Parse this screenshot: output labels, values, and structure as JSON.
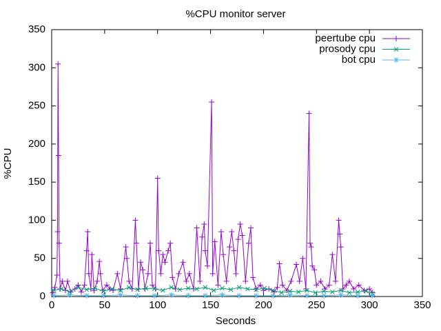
{
  "chart_data": {
    "type": "line",
    "title": "%CPU monitor server",
    "x_label": "Seconds",
    "y_label": "%CPU",
    "xlim": [
      0,
      350
    ],
    "ylim": [
      0,
      350
    ],
    "xticks": [
      0,
      50,
      100,
      150,
      200,
      250,
      300,
      350
    ],
    "yticks": [
      0,
      50,
      100,
      150,
      200,
      250,
      300,
      350
    ],
    "legend": "top right",
    "series": [
      {
        "name": "peertube cpu",
        "color": "#9400d3",
        "marker": "plus",
        "x": [
          1,
          3,
          5,
          5.5,
          6,
          6.5,
          7,
          8,
          10,
          13,
          15,
          18,
          22,
          25,
          28,
          31,
          33,
          34,
          35,
          37,
          38,
          40,
          43,
          45,
          46,
          48,
          52,
          55,
          58,
          62,
          65,
          70,
          71,
          73,
          76,
          79,
          80,
          82,
          84,
          86,
          88,
          91,
          93,
          95,
          98,
          100,
          101,
          103,
          105,
          107,
          110,
          112,
          114,
          117,
          120,
          124,
          127,
          130,
          134,
          137,
          140,
          142,
          144,
          145,
          147,
          151,
          152,
          154,
          157,
          160,
          162,
          165,
          168,
          170,
          172,
          174,
          176,
          178,
          180,
          183,
          186,
          188,
          190,
          193,
          197,
          200,
          205,
          210,
          213,
          215,
          218,
          222,
          226,
          231,
          234,
          237,
          240,
          243,
          244,
          245,
          246,
          248,
          250,
          254,
          258,
          262,
          265,
          268,
          271,
          272,
          273,
          275,
          278,
          281,
          285,
          290,
          295,
          300,
          303
        ],
        "values": [
          5,
          12,
          28,
          85,
          305,
          185,
          70,
          10,
          20,
          8,
          20,
          6,
          10,
          15,
          6,
          15,
          60,
          85,
          30,
          10,
          55,
          8,
          20,
          46,
          30,
          8,
          15,
          10,
          8,
          30,
          10,
          65,
          50,
          20,
          10,
          100,
          70,
          10,
          45,
          35,
          10,
          30,
          70,
          15,
          10,
          155,
          60,
          30,
          55,
          45,
          60,
          70,
          25,
          10,
          30,
          45,
          20,
          30,
          10,
          90,
          20,
          78,
          95,
          60,
          40,
          255,
          30,
          72,
          15,
          85,
          55,
          20,
          65,
          85,
          60,
          30,
          75,
          95,
          80,
          20,
          70,
          90,
          25,
          10,
          15,
          8,
          10,
          6,
          12,
          43,
          15,
          8,
          20,
          42,
          20,
          50,
          10,
          240,
          70,
          65,
          40,
          35,
          15,
          20,
          10,
          15,
          55,
          20,
          100,
          82,
          65,
          10,
          15,
          20,
          10,
          15,
          8,
          10,
          5
        ]
      },
      {
        "name": "prosody cpu",
        "color": "#009e73",
        "marker": "cross",
        "x": [
          2,
          9,
          17,
          25,
          33,
          41,
          49,
          57,
          65,
          73,
          81,
          89,
          97,
          105,
          113,
          121,
          129,
          137,
          145,
          153,
          161,
          169,
          177,
          185,
          193,
          201,
          209,
          217,
          225,
          233,
          241,
          249,
          257,
          265,
          273,
          281,
          289,
          297,
          303
        ],
        "values": [
          8,
          10,
          6,
          12,
          9,
          11,
          7,
          10,
          8,
          12,
          9,
          11,
          10,
          8,
          12,
          9,
          11,
          10,
          12,
          8,
          11,
          9,
          12,
          10,
          9,
          11,
          8,
          5,
          7,
          6,
          8,
          5,
          7,
          6,
          8,
          5,
          6,
          7,
          4
        ]
      },
      {
        "name": "bot cpu",
        "color": "#56b4e9",
        "marker": "star",
        "x": [
          2,
          17,
          33,
          49,
          65,
          81,
          97,
          113,
          129,
          145,
          161,
          177,
          193,
          209,
          225,
          241,
          257,
          273,
          289,
          303
        ],
        "values": [
          1,
          2,
          1,
          1,
          2,
          1,
          1,
          2,
          1,
          1,
          2,
          1,
          1,
          1,
          2,
          1,
          1,
          2,
          1,
          1
        ]
      }
    ]
  }
}
